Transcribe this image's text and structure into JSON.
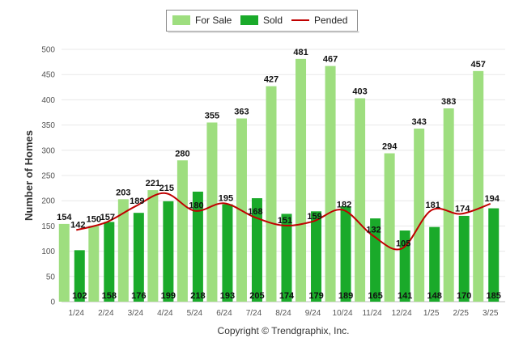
{
  "chart_data": {
    "type": "bar",
    "ylabel": "Number of Homes",
    "ylim": [
      0,
      500
    ],
    "yticks": [
      0,
      50,
      100,
      150,
      200,
      250,
      300,
      350,
      400,
      450,
      500
    ],
    "grid": true,
    "legend_position": "top-center",
    "categories": [
      "1/24",
      "2/24",
      "3/24",
      "4/24",
      "5/24",
      "6/24",
      "7/24",
      "8/24",
      "9/24",
      "10/24",
      "11/24",
      "12/24",
      "1/25",
      "2/25",
      "3/25"
    ],
    "series": [
      {
        "name": "For Sale",
        "type": "bar",
        "color": "#9ede7f",
        "values": [
          154,
          150,
          203,
          221,
          280,
          355,
          363,
          427,
          481,
          467,
          403,
          294,
          343,
          383,
          457
        ]
      },
      {
        "name": "Sold",
        "type": "bar",
        "color": "#1aaa2a",
        "values": [
          102,
          158,
          176,
          199,
          218,
          193,
          205,
          174,
          179,
          189,
          165,
          141,
          148,
          170,
          185
        ]
      },
      {
        "name": "Pended",
        "type": "line",
        "color": "#c00000",
        "values": [
          142,
          157,
          189,
          215,
          180,
          195,
          168,
          151,
          159,
          182,
          132,
          105,
          181,
          174,
          194
        ]
      }
    ],
    "footer": "Copyright © Trendgraphix, Inc."
  }
}
